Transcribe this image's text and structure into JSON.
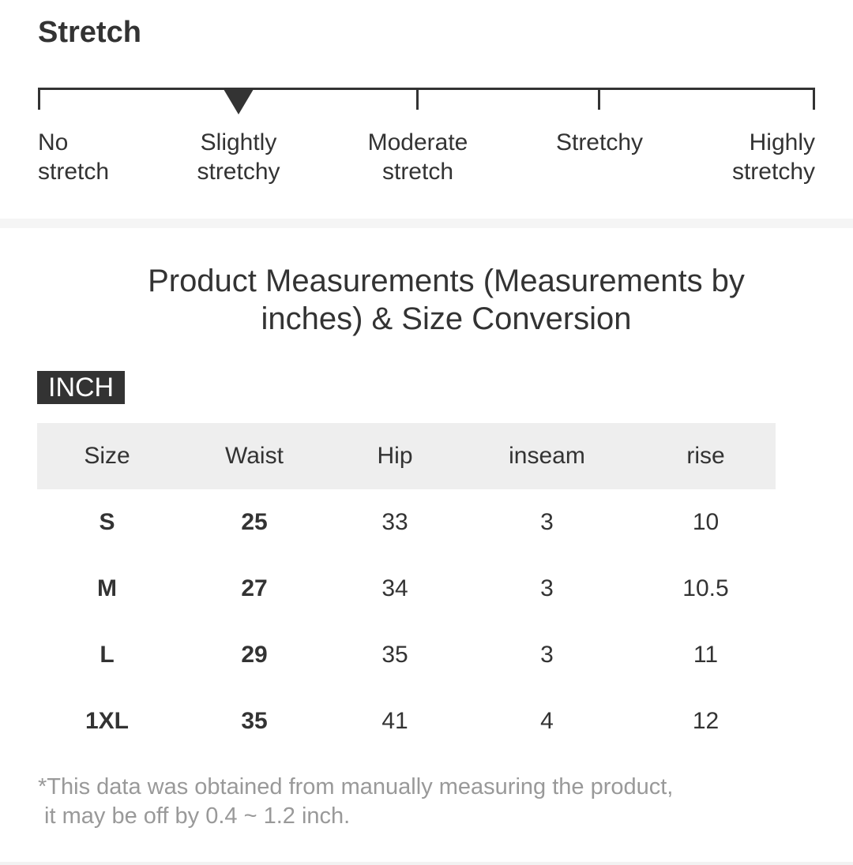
{
  "stretch": {
    "title": "Stretch",
    "selected_index": 1,
    "levels": [
      {
        "label": "No\nstretch"
      },
      {
        "label": "Slightly\nstretchy"
      },
      {
        "label": "Moderate\nstretch"
      },
      {
        "label": "Stretchy"
      },
      {
        "label": "Highly\nstretchy"
      }
    ]
  },
  "measurements": {
    "title": "Product Measurements (Measurements by inches) & Size Conversion",
    "unit_badge": "INCH",
    "columns": [
      "Size",
      "Waist",
      "Hip",
      "inseam",
      "rise"
    ],
    "rows": [
      [
        "S",
        "25",
        "33",
        "3",
        "10"
      ],
      [
        "M",
        "27",
        "34",
        "3",
        "10.5"
      ],
      [
        "L",
        "29",
        "35",
        "3",
        "11"
      ],
      [
        "1XL",
        "35",
        "41",
        "4",
        "12"
      ]
    ],
    "note": "*This data was obtained from manually measuring the product,\n it may be off by 0.4 ~ 1.2 inch."
  },
  "colors": {
    "text": "#333333",
    "header_bg": "#eeeeee",
    "badge_bg": "#333333",
    "note_text": "#999999"
  }
}
